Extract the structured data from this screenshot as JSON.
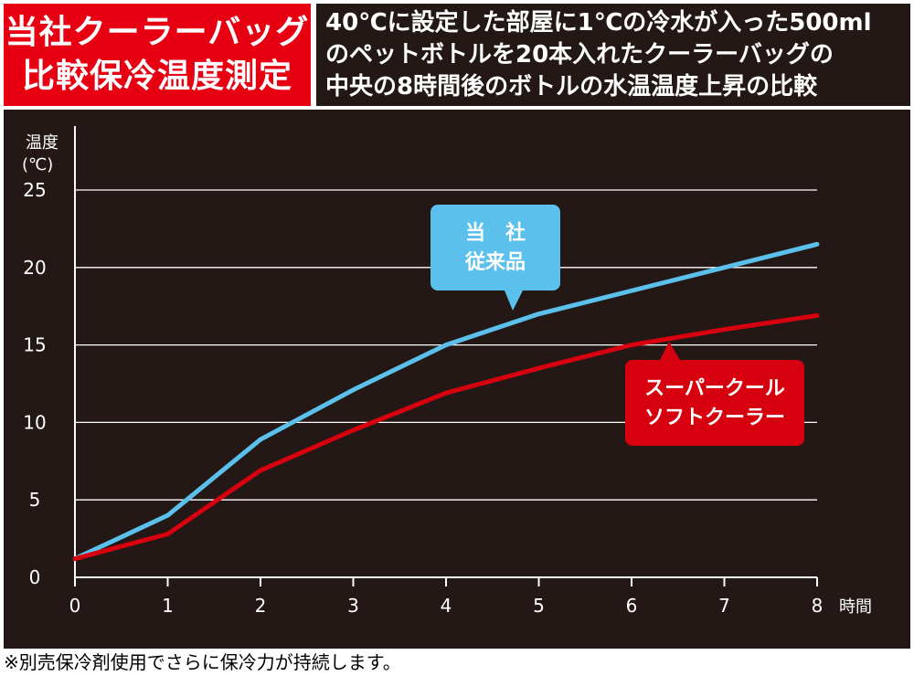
{
  "title": {
    "lines": [
      "当社クーラーバッグ",
      "比較保冷温度測定"
    ]
  },
  "description": {
    "lines": [
      "40℃に設定した部屋に1℃の冷水が入った500ml",
      "のペットボトルを20本入れたクーラーバッグの",
      "中央の8時間後のボトルの水温温度上昇の比較"
    ]
  },
  "chart_data": {
    "type": "line",
    "ylabel_lines": [
      "温度",
      "(℃)"
    ],
    "xlabel": "時間",
    "x": [
      0,
      1,
      2,
      3,
      4,
      5,
      6,
      7,
      8
    ],
    "xlim": [
      0,
      8
    ],
    "ylim": [
      0,
      25
    ],
    "yticks": [
      0,
      5,
      10,
      15,
      20,
      25
    ],
    "grid": "horizontal",
    "series": [
      {
        "name": "当 社 従来品",
        "label_lines": [
          "当　社",
          "従来品"
        ],
        "color": "#5bc0eb",
        "values": [
          1.2,
          4.0,
          8.9,
          12.1,
          15.0,
          17.0,
          18.5,
          20.0,
          21.5
        ]
      },
      {
        "name": "スーパークール ソフトクーラー",
        "label_lines": [
          "スーパークール",
          "ソフトクーラー"
        ],
        "color": "#d7000f",
        "values": [
          1.2,
          2.8,
          6.9,
          9.5,
          11.9,
          13.5,
          15.0,
          16.0,
          16.9
        ]
      }
    ]
  },
  "footnote": "※別売保冷剤使用でさらに保冷力が持続します。",
  "colors": {
    "title_bg": "#e60012",
    "panel_bg": "#231815",
    "grid": "#ffffff",
    "text": "#ffffff"
  }
}
